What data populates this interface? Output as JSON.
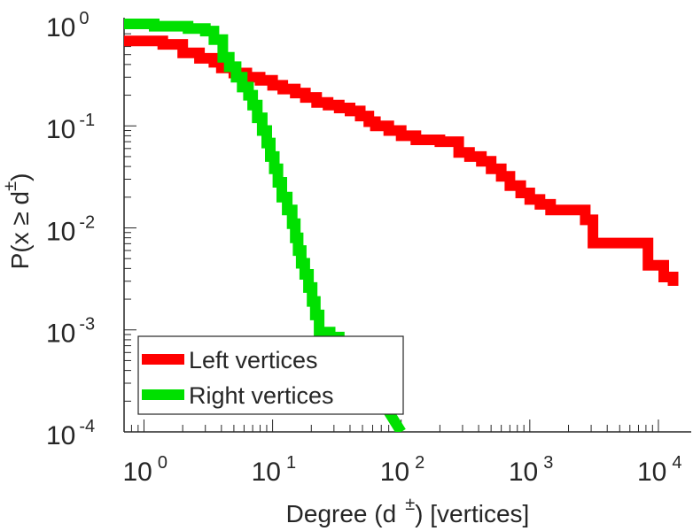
{
  "chart_data": {
    "type": "line",
    "x_scale": "log",
    "y_scale": "log",
    "xlim": [
      0.7,
      18000
    ],
    "ylim": [
      0.0001,
      1.15
    ],
    "grid": false,
    "legend_position": "bottom-left",
    "xlabel": {
      "main": "Degree (d",
      "sup": "±",
      "suffix": ") [vertices]"
    },
    "ylabel": {
      "main": "P(x ≥ d",
      "sup": "±",
      "suffix": ")"
    },
    "x_ticks": [
      {
        "value": 1,
        "base": "10",
        "exp": "0"
      },
      {
        "value": 10,
        "base": "10",
        "exp": "1"
      },
      {
        "value": 100,
        "base": "10",
        "exp": "2"
      },
      {
        "value": 1000,
        "base": "10",
        "exp": "3"
      },
      {
        "value": 10000,
        "base": "10",
        "exp": "4"
      }
    ],
    "y_ticks": [
      {
        "value": 1,
        "base": "10",
        "exp": "0"
      },
      {
        "value": 0.1,
        "base": "10",
        "exp": "-1"
      },
      {
        "value": 0.01,
        "base": "10",
        "exp": "-2"
      },
      {
        "value": 0.001,
        "base": "10",
        "exp": "-3"
      },
      {
        "value": 0.0001,
        "base": "10",
        "exp": "-4"
      }
    ],
    "series": [
      {
        "name": "Left vertices",
        "color": "#ff0000",
        "points": [
          [
            0.7,
            0.68
          ],
          [
            1.4,
            0.68
          ],
          [
            1.4,
            0.63
          ],
          [
            2,
            0.63
          ],
          [
            2,
            0.52
          ],
          [
            2.7,
            0.52
          ],
          [
            2.7,
            0.46
          ],
          [
            3.5,
            0.46
          ],
          [
            3.5,
            0.42
          ],
          [
            4,
            0.42
          ],
          [
            4,
            0.37
          ],
          [
            5,
            0.37
          ],
          [
            5,
            0.33
          ],
          [
            6.3,
            0.33
          ],
          [
            6.3,
            0.3
          ],
          [
            8,
            0.3
          ],
          [
            8,
            0.28
          ],
          [
            10,
            0.28
          ],
          [
            10,
            0.25
          ],
          [
            12,
            0.25
          ],
          [
            12,
            0.23
          ],
          [
            15,
            0.23
          ],
          [
            15,
            0.21
          ],
          [
            18,
            0.21
          ],
          [
            18,
            0.19
          ],
          [
            22,
            0.19
          ],
          [
            22,
            0.17
          ],
          [
            27,
            0.17
          ],
          [
            27,
            0.16
          ],
          [
            33,
            0.16
          ],
          [
            33,
            0.15
          ],
          [
            40,
            0.15
          ],
          [
            40,
            0.14
          ],
          [
            48,
            0.14
          ],
          [
            48,
            0.125
          ],
          [
            56,
            0.125
          ],
          [
            56,
            0.11
          ],
          [
            63,
            0.11
          ],
          [
            63,
            0.1
          ],
          [
            80,
            0.1
          ],
          [
            80,
            0.09
          ],
          [
            100,
            0.09
          ],
          [
            100,
            0.08
          ],
          [
            130,
            0.08
          ],
          [
            130,
            0.073
          ],
          [
            200,
            0.073
          ],
          [
            200,
            0.07
          ],
          [
            280,
            0.07
          ],
          [
            280,
            0.055
          ],
          [
            340,
            0.055
          ],
          [
            340,
            0.05
          ],
          [
            420,
            0.05
          ],
          [
            420,
            0.045
          ],
          [
            500,
            0.045
          ],
          [
            500,
            0.038
          ],
          [
            600,
            0.038
          ],
          [
            600,
            0.032
          ],
          [
            700,
            0.032
          ],
          [
            700,
            0.026
          ],
          [
            850,
            0.026
          ],
          [
            850,
            0.022
          ],
          [
            1000,
            0.022
          ],
          [
            1000,
            0.019
          ],
          [
            1200,
            0.019
          ],
          [
            1200,
            0.017
          ],
          [
            1450,
            0.017
          ],
          [
            1450,
            0.015
          ],
          [
            2700,
            0.015
          ],
          [
            2700,
            0.012
          ],
          [
            3100,
            0.012
          ],
          [
            3100,
            0.0071
          ],
          [
            8300,
            0.0071
          ],
          [
            8300,
            0.0043
          ],
          [
            11000,
            0.0043
          ],
          [
            11000,
            0.0033
          ],
          [
            13000,
            0.0033
          ],
          [
            13000,
            0.0027
          ]
        ]
      },
      {
        "name": "Right vertices",
        "color": "#00e000",
        "points": [
          [
            0.7,
            1
          ],
          [
            1.2,
            1
          ],
          [
            1.2,
            0.95
          ],
          [
            2.2,
            0.95
          ],
          [
            2.2,
            0.9
          ],
          [
            3,
            0.9
          ],
          [
            3,
            0.85
          ],
          [
            3.5,
            0.85
          ],
          [
            3.5,
            0.7
          ],
          [
            4.1,
            0.7
          ],
          [
            4.1,
            0.47
          ],
          [
            4.6,
            0.47
          ],
          [
            4.6,
            0.38
          ],
          [
            5.2,
            0.38
          ],
          [
            5.2,
            0.3
          ],
          [
            5.8,
            0.3
          ],
          [
            5.8,
            0.24
          ],
          [
            6.5,
            0.24
          ],
          [
            6.5,
            0.2
          ],
          [
            7,
            0.2
          ],
          [
            7,
            0.16
          ],
          [
            7.6,
            0.16
          ],
          [
            7.6,
            0.12
          ],
          [
            8.3,
            0.12
          ],
          [
            8.3,
            0.09
          ],
          [
            9,
            0.09
          ],
          [
            9,
            0.068
          ],
          [
            9.6,
            0.068
          ],
          [
            9.6,
            0.05
          ],
          [
            10.3,
            0.05
          ],
          [
            10.3,
            0.038
          ],
          [
            11,
            0.038
          ],
          [
            11,
            0.028
          ],
          [
            11.8,
            0.028
          ],
          [
            11.8,
            0.02
          ],
          [
            13,
            0.02
          ],
          [
            13,
            0.015
          ],
          [
            14.2,
            0.015
          ],
          [
            14.2,
            0.011
          ],
          [
            15,
            0.011
          ],
          [
            15,
            0.008
          ],
          [
            15.8,
            0.008
          ],
          [
            15.8,
            0.006
          ],
          [
            16.7,
            0.006
          ],
          [
            16.7,
            0.0045
          ],
          [
            17.8,
            0.0045
          ],
          [
            17.8,
            0.0035
          ],
          [
            19,
            0.0035
          ],
          [
            19,
            0.0026
          ],
          [
            20.3,
            0.0026
          ],
          [
            20.3,
            0.0019
          ],
          [
            21.5,
            0.0019
          ],
          [
            21.5,
            0.0014
          ],
          [
            23,
            0.0014
          ],
          [
            23,
            0.00095
          ],
          [
            28,
            0.00095
          ],
          [
            28,
            0.00085
          ],
          [
            33,
            0.00085
          ],
          [
            33,
            0.00075
          ],
          [
            37,
            0.00075
          ],
          [
            100,
            0.0001
          ]
        ]
      }
    ]
  }
}
